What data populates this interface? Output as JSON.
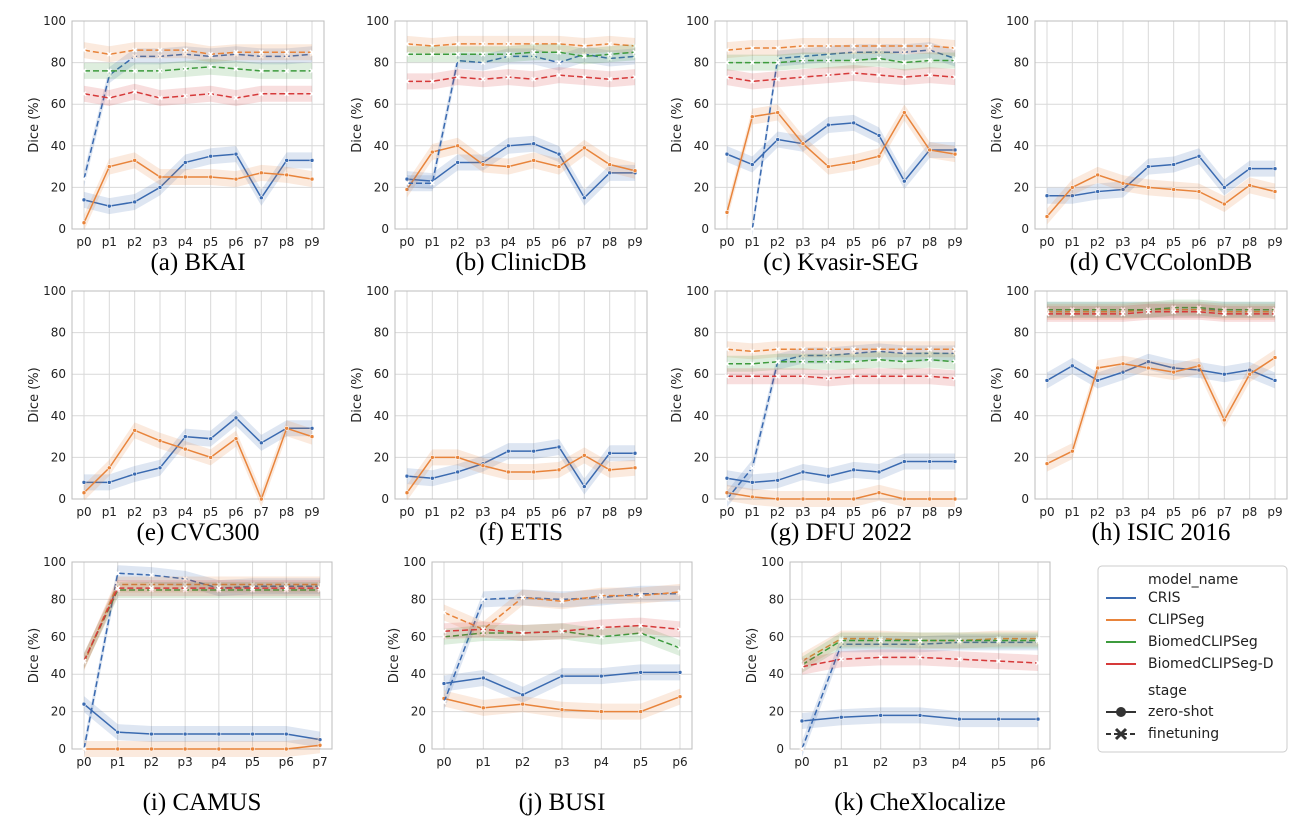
{
  "legend": {
    "title_model": "model_name",
    "title_stage": "stage",
    "models": [
      {
        "name": "CRIS",
        "color": "#3a6ab0"
      },
      {
        "name": "CLIPSeg",
        "color": "#e8843b"
      },
      {
        "name": "BiomedCLIPSeg",
        "color": "#3d9b3d"
      },
      {
        "name": "BiomedCLIPSeg-D",
        "color": "#d63a3a"
      }
    ],
    "stages": [
      "zero-shot",
      "finetuning"
    ]
  },
  "chart_data": [
    {
      "type": "line",
      "caption": "(a) BKAI",
      "ylabel": "Dice (%)",
      "ylim": [
        0,
        100
      ],
      "yticks": [
        0,
        20,
        40,
        60,
        80,
        100
      ],
      "categories": [
        "p0",
        "p1",
        "p2",
        "p3",
        "p4",
        "p5",
        "p6",
        "p7",
        "p8",
        "p9"
      ],
      "series": [
        {
          "name": "CRIS",
          "stage": "zero-shot",
          "values": [
            14,
            11,
            13,
            20,
            32,
            35,
            36,
            15,
            33,
            33
          ]
        },
        {
          "name": "CLIPSeg",
          "stage": "zero-shot",
          "values": [
            3,
            30,
            33,
            25,
            25,
            25,
            24,
            27,
            26,
            24
          ]
        },
        {
          "name": "CRIS",
          "stage": "finetuning",
          "values": [
            24,
            74,
            83,
            83,
            84,
            83,
            84,
            83,
            83,
            84
          ]
        },
        {
          "name": "CLIPSeg",
          "stage": "finetuning",
          "values": [
            86,
            84,
            86,
            86,
            86,
            84,
            85,
            85,
            85,
            85
          ]
        },
        {
          "name": "BiomedCLIPSeg",
          "stage": "finetuning",
          "values": [
            76,
            76,
            76,
            76,
            77,
            78,
            77,
            76,
            76,
            76
          ]
        },
        {
          "name": "BiomedCLIPSeg-D",
          "stage": "finetuning",
          "values": [
            65,
            63,
            66,
            63,
            64,
            65,
            63,
            65,
            65,
            65
          ]
        }
      ]
    },
    {
      "type": "line",
      "caption": "(b) ClinicDB",
      "ylabel": "Dice (%)",
      "ylim": [
        0,
        100
      ],
      "yticks": [
        0,
        20,
        40,
        60,
        80,
        100
      ],
      "categories": [
        "p0",
        "p1",
        "p2",
        "p3",
        "p4",
        "p5",
        "p6",
        "p7",
        "p8",
        "p9"
      ],
      "series": [
        {
          "name": "CRIS",
          "stage": "zero-shot",
          "values": [
            24,
            23,
            32,
            32,
            40,
            41,
            36,
            15,
            27,
            27
          ]
        },
        {
          "name": "CLIPSeg",
          "stage": "zero-shot",
          "values": [
            19,
            37,
            40,
            31,
            30,
            33,
            30,
            39,
            31,
            28
          ]
        },
        {
          "name": "CRIS",
          "stage": "finetuning",
          "values": [
            22,
            22,
            81,
            80,
            83,
            83,
            80,
            84,
            82,
            83
          ]
        },
        {
          "name": "CLIPSeg",
          "stage": "finetuning",
          "values": [
            89,
            88,
            89,
            89,
            89,
            89,
            89,
            88,
            89,
            88
          ]
        },
        {
          "name": "BiomedCLIPSeg",
          "stage": "finetuning",
          "values": [
            84,
            84,
            84,
            84,
            84,
            85,
            85,
            83,
            84,
            85
          ]
        },
        {
          "name": "BiomedCLIPSeg-D",
          "stage": "finetuning",
          "values": [
            71,
            71,
            73,
            72,
            73,
            72,
            74,
            73,
            72,
            73
          ]
        }
      ]
    },
    {
      "type": "line",
      "caption": "(c) Kvasir-SEG",
      "ylabel": "Dice (%)",
      "ylim": [
        0,
        100
      ],
      "yticks": [
        0,
        20,
        40,
        60,
        80,
        100
      ],
      "categories": [
        "p0",
        "p1",
        "p2",
        "p3",
        "p4",
        "p5",
        "p6",
        "p7",
        "p8",
        "p9"
      ],
      "series": [
        {
          "name": "CRIS",
          "stage": "zero-shot",
          "values": [
            36,
            31,
            43,
            41,
            50,
            51,
            45,
            23,
            38,
            38
          ]
        },
        {
          "name": "CLIPSeg",
          "stage": "zero-shot",
          "values": [
            8,
            54,
            56,
            41,
            30,
            32,
            35,
            56,
            38,
            36
          ]
        },
        {
          "name": "CRIS",
          "stage": "finetuning",
          "values": [
            null,
            0,
            82,
            83,
            84,
            85,
            85,
            85,
            86,
            82
          ]
        },
        {
          "name": "CLIPSeg",
          "stage": "finetuning",
          "values": [
            86,
            87,
            87,
            88,
            88,
            88,
            88,
            88,
            88,
            87
          ]
        },
        {
          "name": "BiomedCLIPSeg",
          "stage": "finetuning",
          "values": [
            80,
            80,
            80,
            81,
            81,
            81,
            82,
            80,
            81,
            81
          ]
        },
        {
          "name": "BiomedCLIPSeg-D",
          "stage": "finetuning",
          "values": [
            73,
            71,
            72,
            73,
            74,
            75,
            74,
            73,
            74,
            73
          ]
        }
      ]
    },
    {
      "type": "line",
      "caption": "(d) CVCColonDB",
      "ylabel": "Dice (%)",
      "ylim": [
        0,
        100
      ],
      "yticks": [
        0,
        20,
        40,
        60,
        80,
        100
      ],
      "categories": [
        "p0",
        "p1",
        "p2",
        "p3",
        "p4",
        "p5",
        "p6",
        "p7",
        "p8",
        "p9"
      ],
      "series": [
        {
          "name": "CRIS",
          "stage": "zero-shot",
          "values": [
            16,
            16,
            18,
            19,
            30,
            31,
            35,
            20,
            29,
            29
          ]
        },
        {
          "name": "CLIPSeg",
          "stage": "zero-shot",
          "values": [
            6,
            20,
            26,
            22,
            20,
            19,
            18,
            12,
            21,
            18
          ]
        }
      ]
    },
    {
      "type": "line",
      "caption": "(e) CVC300",
      "ylabel": "Dice (%)",
      "ylim": [
        0,
        100
      ],
      "yticks": [
        0,
        20,
        40,
        60,
        80,
        100
      ],
      "categories": [
        "p0",
        "p1",
        "p2",
        "p3",
        "p4",
        "p5",
        "p6",
        "p7",
        "p8",
        "p9"
      ],
      "series": [
        {
          "name": "CRIS",
          "stage": "zero-shot",
          "values": [
            8,
            8,
            12,
            15,
            30,
            29,
            39,
            27,
            34,
            34
          ]
        },
        {
          "name": "CLIPSeg",
          "stage": "zero-shot",
          "values": [
            3,
            15,
            33,
            28,
            24,
            20,
            29,
            0,
            34,
            30
          ]
        }
      ]
    },
    {
      "type": "line",
      "caption": "(f) ETIS",
      "ylabel": "Dice (%)",
      "ylim": [
        0,
        100
      ],
      "yticks": [
        0,
        20,
        40,
        60,
        80,
        100
      ],
      "categories": [
        "p0",
        "p1",
        "p2",
        "p3",
        "p4",
        "p5",
        "p6",
        "p7",
        "p8",
        "p9"
      ],
      "series": [
        {
          "name": "CRIS",
          "stage": "zero-shot",
          "values": [
            11,
            10,
            13,
            17,
            23,
            23,
            25,
            6,
            22,
            22
          ]
        },
        {
          "name": "CLIPSeg",
          "stage": "zero-shot",
          "values": [
            3,
            20,
            20,
            16,
            13,
            13,
            14,
            21,
            14,
            15
          ]
        }
      ]
    },
    {
      "type": "line",
      "caption": "(g) DFU 2022",
      "ylabel": "Dice (%)",
      "ylim": [
        0,
        100
      ],
      "yticks": [
        0,
        20,
        40,
        60,
        80,
        100
      ],
      "categories": [
        "p0",
        "p1",
        "p2",
        "p3",
        "p4",
        "p5",
        "p6",
        "p7",
        "p8",
        "p9"
      ],
      "series": [
        {
          "name": "CRIS",
          "stage": "zero-shot",
          "values": [
            10,
            8,
            9,
            13,
            11,
            14,
            13,
            18,
            18,
            18
          ]
        },
        {
          "name": "CLIPSeg",
          "stage": "zero-shot",
          "values": [
            3,
            1,
            0,
            0,
            0,
            0,
            3,
            0,
            0,
            0
          ]
        },
        {
          "name": "CRIS",
          "stage": "finetuning",
          "values": [
            0,
            15,
            66,
            69,
            69,
            70,
            71,
            70,
            70,
            70
          ]
        },
        {
          "name": "CLIPSeg",
          "stage": "finetuning",
          "values": [
            72,
            71,
            72,
            72,
            72,
            72,
            72,
            72,
            72,
            72
          ]
        },
        {
          "name": "BiomedCLIPSeg",
          "stage": "finetuning",
          "values": [
            65,
            65,
            66,
            66,
            66,
            66,
            67,
            66,
            67,
            66
          ]
        },
        {
          "name": "BiomedCLIPSeg-D",
          "stage": "finetuning",
          "values": [
            59,
            59,
            59,
            59,
            58,
            59,
            59,
            59,
            59,
            58
          ]
        }
      ]
    },
    {
      "type": "line",
      "caption": "(h) ISIC 2016",
      "ylabel": "Dice (%)",
      "ylim": [
        0,
        100
      ],
      "yticks": [
        0,
        20,
        40,
        60,
        80,
        100
      ],
      "categories": [
        "p0",
        "p1",
        "p2",
        "p3",
        "p4",
        "p5",
        "p6",
        "p7",
        "p8",
        "p9"
      ],
      "series": [
        {
          "name": "CRIS",
          "stage": "zero-shot",
          "values": [
            57,
            64,
            57,
            61,
            66,
            63,
            62,
            60,
            62,
            57
          ]
        },
        {
          "name": "CLIPSeg",
          "stage": "zero-shot",
          "values": [
            17,
            23,
            63,
            65,
            63,
            61,
            64,
            38,
            60,
            68
          ]
        },
        {
          "name": "CRIS",
          "stage": "finetuning",
          "values": [
            91,
            91,
            91,
            91,
            91,
            91,
            91,
            91,
            91,
            91
          ]
        },
        {
          "name": "CLIPSeg",
          "stage": "finetuning",
          "values": [
            90,
            90,
            90,
            90,
            91,
            91,
            91,
            90,
            90,
            90
          ]
        },
        {
          "name": "BiomedCLIPSeg",
          "stage": "finetuning",
          "values": [
            91,
            91,
            91,
            91,
            91,
            92,
            92,
            91,
            91,
            91
          ]
        },
        {
          "name": "BiomedCLIPSeg-D",
          "stage": "finetuning",
          "values": [
            89,
            89,
            89,
            89,
            90,
            90,
            90,
            89,
            89,
            89
          ]
        }
      ]
    },
    {
      "type": "line",
      "caption": "(i) CAMUS",
      "ylabel": "Dice (%)",
      "ylim": [
        0,
        100
      ],
      "yticks": [
        0,
        20,
        40,
        60,
        80,
        100
      ],
      "categories": [
        "p0",
        "p1",
        "p2",
        "p3",
        "p4",
        "p5",
        "p6",
        "p7"
      ],
      "series": [
        {
          "name": "CRIS",
          "stage": "zero-shot",
          "values": [
            24,
            9,
            8,
            8,
            8,
            8,
            8,
            5
          ]
        },
        {
          "name": "CLIPSeg",
          "stage": "zero-shot",
          "values": [
            0,
            0,
            0,
            0,
            0,
            0,
            0,
            2
          ]
        },
        {
          "name": "CRIS",
          "stage": "finetuning",
          "values": [
            0,
            94,
            93,
            91,
            86,
            87,
            87,
            87
          ]
        },
        {
          "name": "CLIPSeg",
          "stage": "finetuning",
          "values": [
            46,
            88,
            88,
            88,
            88,
            88,
            88,
            88
          ]
        },
        {
          "name": "BiomedCLIPSeg",
          "stage": "finetuning",
          "values": [
            47,
            85,
            85,
            85,
            85,
            85,
            85,
            85
          ]
        },
        {
          "name": "BiomedCLIPSeg-D",
          "stage": "finetuning",
          "values": [
            47,
            86,
            86,
            86,
            86,
            86,
            86,
            86
          ]
        }
      ]
    },
    {
      "type": "line",
      "caption": "(j) BUSI",
      "ylabel": "Dice (%)",
      "ylim": [
        0,
        100
      ],
      "yticks": [
        0,
        20,
        40,
        60,
        80,
        100
      ],
      "categories": [
        "p0",
        "p1",
        "p2",
        "p3",
        "p4",
        "p5",
        "p6"
      ],
      "series": [
        {
          "name": "CRIS",
          "stage": "zero-shot",
          "values": [
            35,
            38,
            29,
            39,
            39,
            41,
            41
          ]
        },
        {
          "name": "CLIPSeg",
          "stage": "zero-shot",
          "values": [
            27,
            22,
            24,
            21,
            20,
            20,
            28
          ]
        },
        {
          "name": "CRIS",
          "stage": "finetuning",
          "values": [
            25,
            80,
            81,
            80,
            81,
            83,
            83
          ]
        },
        {
          "name": "CLIPSeg",
          "stage": "finetuning",
          "values": [
            73,
            64,
            81,
            79,
            82,
            82,
            84
          ]
        },
        {
          "name": "BiomedCLIPSeg",
          "stage": "finetuning",
          "values": [
            60,
            62,
            62,
            63,
            60,
            62,
            54
          ]
        },
        {
          "name": "BiomedCLIPSeg-D",
          "stage": "finetuning",
          "values": [
            63,
            64,
            62,
            63,
            65,
            66,
            64
          ]
        }
      ]
    },
    {
      "type": "line",
      "caption": "(k) CheXlocalize",
      "ylabel": "Dice (%)",
      "ylim": [
        0,
        100
      ],
      "yticks": [
        0,
        20,
        40,
        60,
        80,
        100
      ],
      "categories": [
        "p0",
        "p1",
        "p2",
        "p3",
        "p4",
        "p5",
        "p6"
      ],
      "series": [
        {
          "name": "CRIS",
          "stage": "zero-shot",
          "values": [
            15,
            17,
            18,
            18,
            16,
            16,
            16
          ]
        },
        {
          "name": "CLIPSeg",
          "stage": "zero-shot",
          "values": [
            0,
            null,
            null,
            null,
            null,
            null,
            null
          ]
        },
        {
          "name": "CRIS",
          "stage": "finetuning",
          "values": [
            0,
            56,
            56,
            56,
            57,
            57,
            57
          ]
        },
        {
          "name": "CLIPSeg",
          "stage": "finetuning",
          "values": [
            47,
            59,
            59,
            58,
            58,
            59,
            59
          ]
        },
        {
          "name": "BiomedCLIPSeg",
          "stage": "finetuning",
          "values": [
            45,
            58,
            58,
            58,
            58,
            58,
            58
          ]
        },
        {
          "name": "BiomedCLIPSeg-D",
          "stage": "finetuning",
          "values": [
            44,
            48,
            49,
            49,
            48,
            47,
            46
          ]
        }
      ]
    }
  ]
}
